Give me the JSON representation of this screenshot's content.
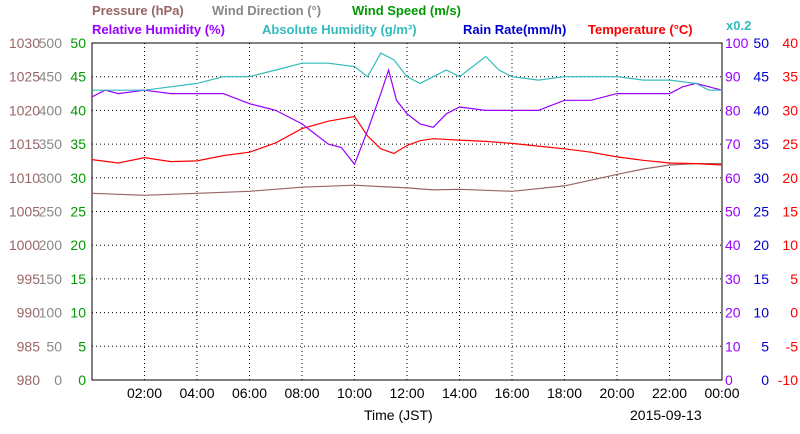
{
  "chart_data": {
    "type": "line",
    "date": "2015-09-13",
    "xlabel": "Time (JST)",
    "x_ticks": [
      "02:00",
      "04:00",
      "06:00",
      "08:00",
      "10:00",
      "12:00",
      "14:00",
      "16:00",
      "18:00",
      "20:00",
      "22:00",
      "00:00"
    ],
    "x_range_hours": [
      0,
      24
    ],
    "grid": true,
    "legend_placement": "top",
    "legend": [
      {
        "label": "Pressure (hPa)",
        "color": "#996666"
      },
      {
        "label": "Wind Direction (°)",
        "color": "#888888"
      },
      {
        "label": "Wind Speed (m/s)",
        "color": "#009900"
      },
      {
        "label": "Relative Humidity (%)",
        "color": "#9900ff"
      },
      {
        "label": "Absolute Humidity (g/m³)",
        "color": "#33bbbb"
      },
      {
        "label": "Rain Rate(mm/h)",
        "color": "#0000cc"
      },
      {
        "label": "Temperature (°C)",
        "color": "#ff0000"
      }
    ],
    "multiplier_note": "x0.2",
    "axes": {
      "pressure": {
        "range": [
          980,
          1030
        ],
        "ticks": [
          "1030",
          "1025",
          "1020",
          "1015",
          "1010",
          "1005",
          "1000",
          "995",
          "990",
          "985",
          "980"
        ],
        "color": "#996666"
      },
      "wind_direction": {
        "range": [
          0,
          500
        ],
        "ticks": [
          "500",
          "450",
          "400",
          "350",
          "300",
          "250",
          "200",
          "150",
          "100",
          "50",
          "0"
        ],
        "color": "#888888"
      },
      "wind_speed": {
        "range": [
          0,
          50
        ],
        "ticks": [
          "50",
          "45",
          "40",
          "35",
          "30",
          "25",
          "20",
          "15",
          "10",
          "5",
          "0"
        ],
        "color": "#009900"
      },
      "humidity": {
        "range": [
          0,
          100
        ],
        "ticks": [
          "100",
          "90",
          "80",
          "70",
          "60",
          "50",
          "40",
          "30",
          "20",
          "10",
          "0"
        ],
        "color": "#9900ff"
      },
      "rain_rate": {
        "range": [
          0,
          50
        ],
        "ticks": [
          "50",
          "45",
          "40",
          "35",
          "30",
          "25",
          "20",
          "15",
          "10",
          "5",
          "0"
        ],
        "color": "#0000cc"
      },
      "temperature": {
        "range": [
          -10,
          40
        ],
        "ticks": [
          "40",
          "35",
          "30",
          "25",
          "20",
          "15",
          "10",
          "5",
          "0",
          "-5",
          "-10"
        ],
        "color": "#ff0000"
      }
    },
    "series": [
      {
        "name": "Pressure (hPa)",
        "axis": "pressure",
        "color": "#996666",
        "x": [
          0,
          2,
          4,
          6,
          8,
          10,
          11,
          12,
          13,
          14,
          16,
          18,
          20,
          21,
          22,
          23,
          24
        ],
        "y": [
          1007.7,
          1007.4,
          1007.7,
          1008.0,
          1008.6,
          1008.9,
          1008.7,
          1008.5,
          1008.2,
          1008.3,
          1008.0,
          1008.8,
          1010.5,
          1011.3,
          1011.9,
          1012.1,
          1012.1
        ]
      },
      {
        "name": "Temperature (°C)",
        "axis": "temperature",
        "color": "#ff0000",
        "x": [
          0,
          1,
          2,
          3,
          4,
          5,
          6,
          7,
          8,
          9,
          10,
          10.5,
          11,
          11.5,
          12,
          12.5,
          13,
          14,
          15,
          16,
          17,
          18,
          19,
          20,
          21,
          22,
          23,
          24
        ],
        "y": [
          22.7,
          22.2,
          23.0,
          22.4,
          22.5,
          23.3,
          23.8,
          25.2,
          27.3,
          28.4,
          29.1,
          26.2,
          24.3,
          23.6,
          24.8,
          25.5,
          25.8,
          25.6,
          25.4,
          25.1,
          24.7,
          24.3,
          23.8,
          23.1,
          22.6,
          22.2,
          22.1,
          21.9
        ]
      },
      {
        "name": "Relative Humidity (%)",
        "axis": "humidity",
        "color": "#9900ff",
        "x": [
          0,
          0.5,
          1,
          2,
          3,
          4,
          5,
          6,
          6.5,
          7,
          8,
          8.5,
          9,
          9.5,
          10,
          10.5,
          11,
          11.3,
          11.6,
          12,
          12.5,
          13,
          13.5,
          14,
          15,
          16,
          17,
          18,
          19,
          20,
          21,
          22,
          22.5,
          23,
          23.5,
          24
        ],
        "y": [
          84,
          86,
          85,
          86,
          85,
          85,
          85,
          82,
          81,
          80,
          76,
          73,
          70,
          69,
          64,
          74,
          85,
          92,
          83,
          79,
          76,
          75,
          79,
          81,
          80,
          80,
          80,
          83,
          83,
          85,
          85,
          85,
          87,
          88,
          87,
          86
        ]
      },
      {
        "name": "Absolute Humidity (g/m³)",
        "axis": "humidity",
        "color": "#33bbbb",
        "x": [
          0,
          1,
          2,
          3,
          4,
          5,
          6,
          7,
          8,
          9,
          10,
          10.5,
          11,
          11.5,
          12,
          12.5,
          13,
          13.5,
          14,
          14.5,
          15,
          15.5,
          16,
          17,
          18,
          19,
          20,
          21,
          22,
          23,
          23.5,
          24
        ],
        "y": [
          86,
          86,
          86,
          87,
          88,
          90,
          90,
          92,
          94,
          94,
          93,
          90,
          97,
          95,
          90,
          88,
          90,
          92,
          90,
          93,
          96,
          92,
          90,
          89,
          90,
          90,
          90,
          89,
          89,
          88,
          86,
          86
        ]
      }
    ]
  }
}
